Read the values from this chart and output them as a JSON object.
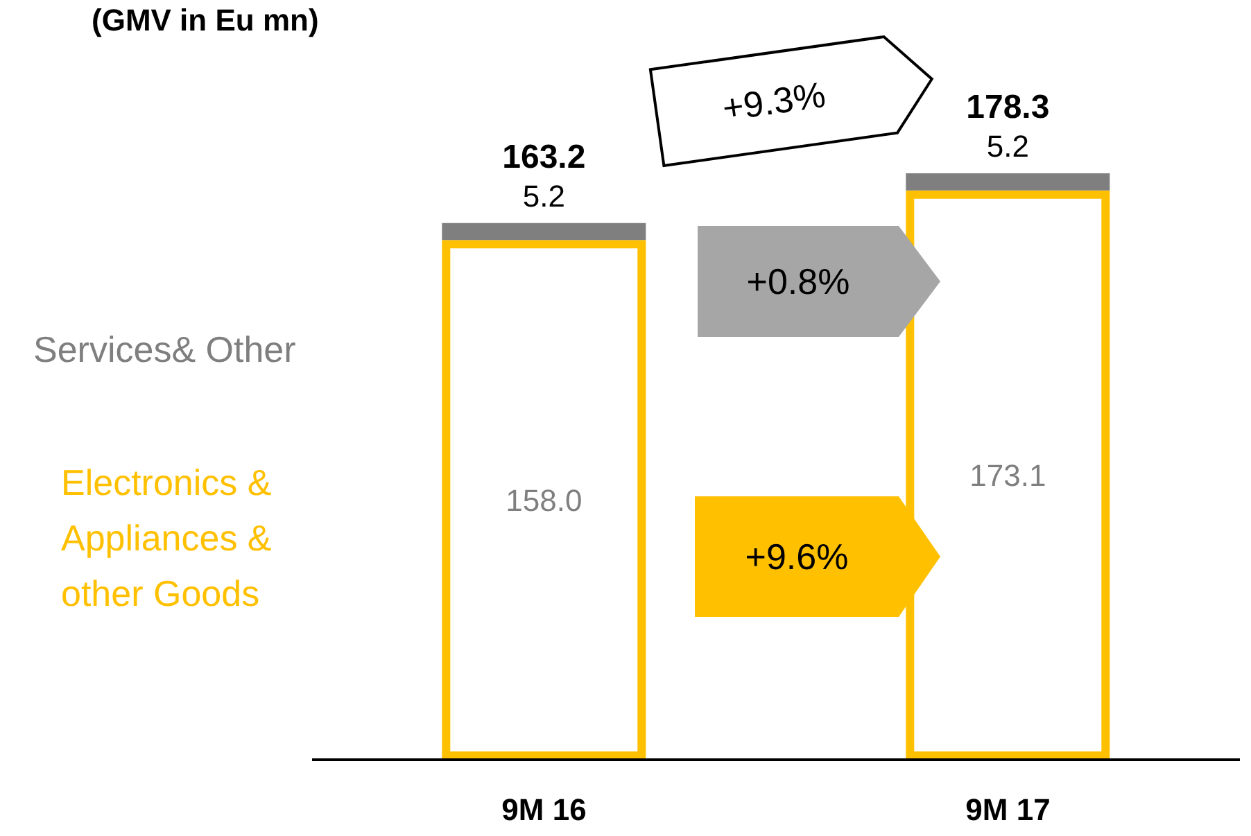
{
  "chart_data": {
    "type": "bar",
    "title": "(GMV in Eu mn)",
    "categories": [
      "9M 16",
      "9M 17"
    ],
    "stacked": true,
    "series": [
      {
        "name": "Electronics & Appliances & other Goods",
        "color": "#ffc000",
        "values": [
          158.0,
          173.1
        ],
        "value_labels": [
          "158.0",
          "173.1"
        ]
      },
      {
        "name": "Services& Other",
        "color": "#7f7f7f",
        "values": [
          5.2,
          5.2
        ],
        "value_labels": [
          "5.2",
          "5.2"
        ]
      }
    ],
    "totals": [
      "163.2",
      "178.3"
    ],
    "annotations": [
      "+9.3%",
      "+0.8%",
      "+9.6%"
    ],
    "legend": false,
    "grid": false
  }
}
